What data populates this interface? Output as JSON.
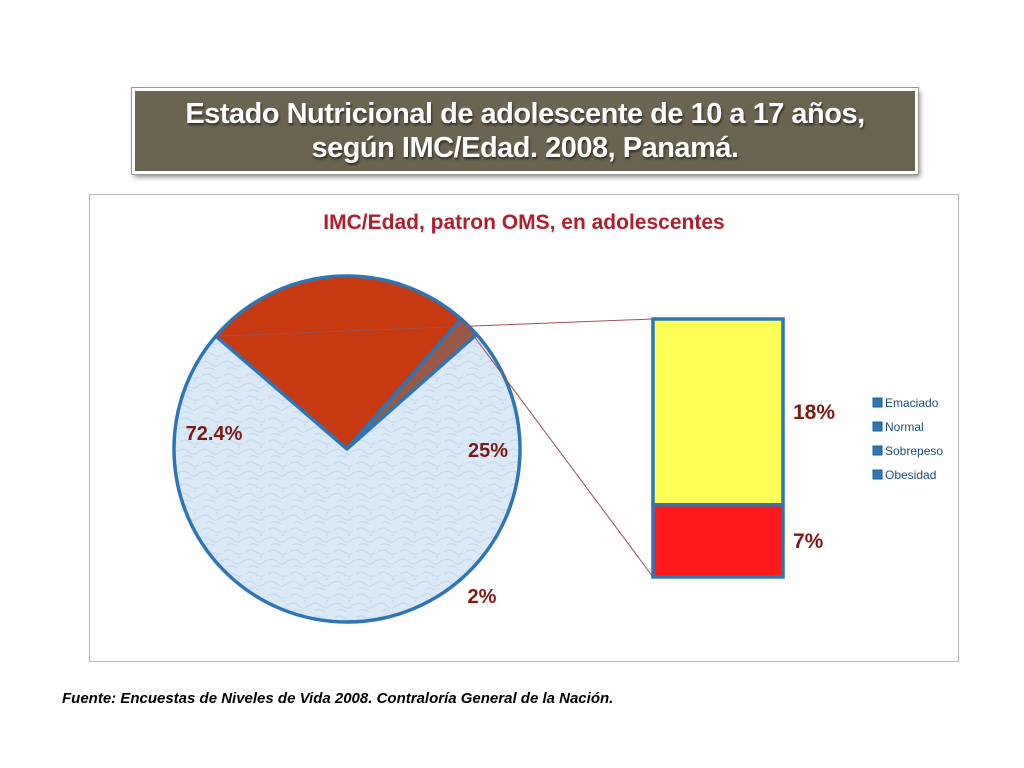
{
  "slide": {
    "title": "Estado Nutricional de adolescente de 10 a 17 años, según IMC/Edad. 2008, Panamá.",
    "source": "Fuente: Encuestas de Niveles de Vida 2008.  Contraloría General de la Nación."
  },
  "chart_data": {
    "type": "pie",
    "title": "IMC/Edad, patron OMS, en adolescentes",
    "pie": {
      "slices": [
        {
          "category": "Normal",
          "value": 72.4,
          "label": "72.4%"
        },
        {
          "category": "Sobrepeso + Obesidad",
          "value": 25,
          "label": "25%"
        },
        {
          "category": "Emaciado",
          "value": 2,
          "label": "2%"
        }
      ]
    },
    "breakout_bar": {
      "segments": [
        {
          "category": "Sobrepeso",
          "value": 18,
          "label": "18%"
        },
        {
          "category": "Obesidad",
          "value": 7,
          "label": "7%"
        }
      ]
    },
    "legend": {
      "placement": "right",
      "entries": [
        "Emaciado",
        "Normal",
        "Sobrepeso",
        "Obesidad"
      ]
    },
    "colors": {
      "Normal": "#dbe9f7",
      "Sobrepeso + Obesidad": "#c83a12",
      "Emaciado": "#9a5a48",
      "Sobrepeso": "#ffff55",
      "Obesidad": "#ff1a1a",
      "outline": "#2e75b6",
      "title": "#b01e2e",
      "label": "#7a1a14",
      "connector": "#a05050",
      "legend_marker": "#2e75b6"
    }
  }
}
